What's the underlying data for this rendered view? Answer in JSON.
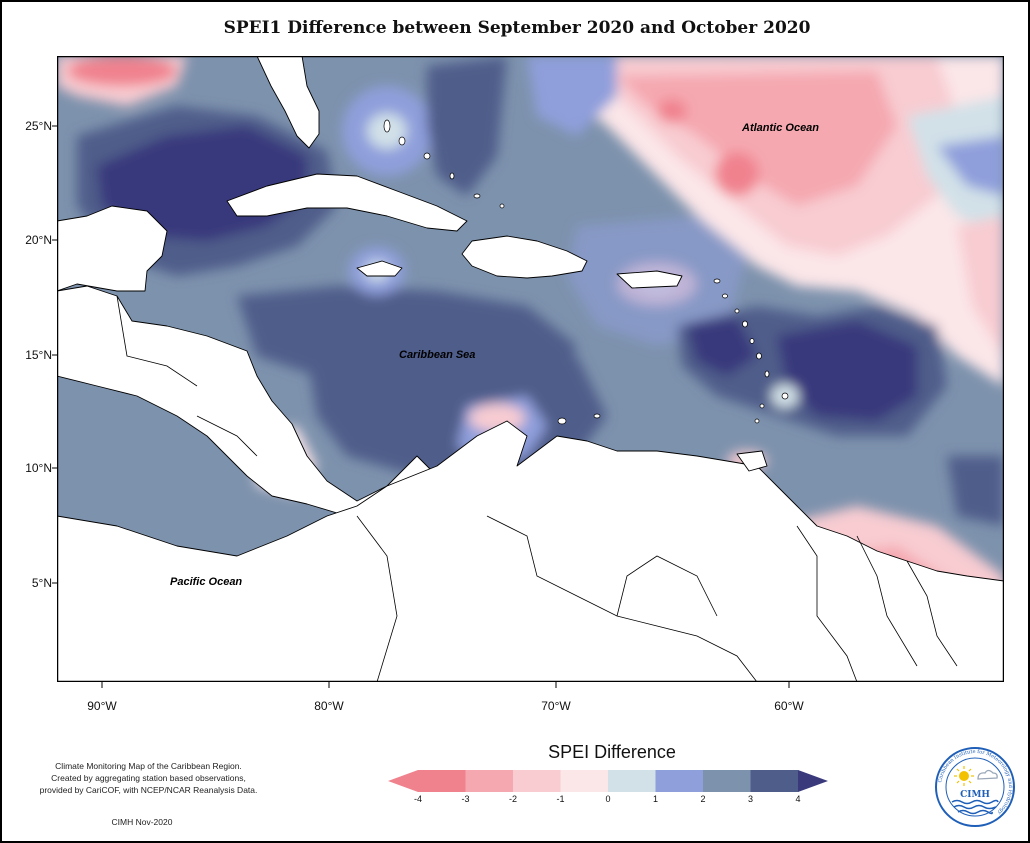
{
  "title": "SPEI1 Difference between September 2020 and October 2020",
  "map": {
    "region": "Caribbean",
    "projection": "equirectangular",
    "lon_range": [
      -92,
      -50
    ],
    "lat_range": [
      0.5,
      28
    ],
    "labels": {
      "atlantic": "Atlantic Ocean",
      "caribbean": "Caribbean Sea",
      "pacific": "Pacific Ocean"
    },
    "lat_ticks": [
      "25°N",
      "20°N",
      "15°N",
      "10°N",
      "5°N"
    ],
    "lon_ticks": [
      "90°W",
      "80°W",
      "70°W",
      "60°W"
    ],
    "land_color": "#ffffff",
    "coast_color": "#000000"
  },
  "legend": {
    "title": "SPEI Difference",
    "ticks": [
      "-4",
      "-3",
      "-2",
      "-1",
      "0",
      "1",
      "2",
      "3",
      "4"
    ],
    "colors": [
      "#f0828e",
      "#f5a8b0",
      "#f8ccd1",
      "#fbe6e8",
      "#d2e1e8",
      "#8f9fdb",
      "#7d92ad",
      "#4f5d8a",
      "#39397c"
    ]
  },
  "credit": {
    "lines": [
      "Climate Monitoring Map of the Caribbean Region.",
      "Created by aggregating station based observations,",
      "provided by CariCOF, with NCEP/NCAR Reanalysis Data."
    ],
    "date": "CIMH Nov-2020"
  },
  "logo": {
    "text": "CIMH",
    "ring_text": "Caribbean Institute for Meteorology and Hydrology",
    "icon": "sun-cloud-water-icon",
    "colors": {
      "sun": "#f2c200",
      "water": "#1f5fb8",
      "cloud": "#9aa7b8"
    }
  }
}
